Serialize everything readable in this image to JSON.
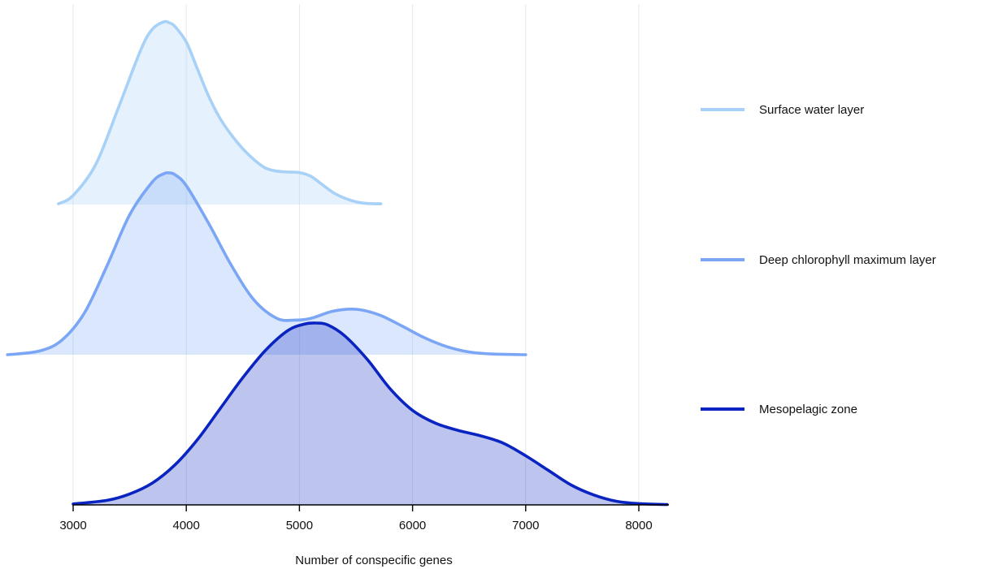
{
  "chart_data": {
    "type": "area",
    "chart_style": "ridgeline density",
    "title": "",
    "xlabel": "Number of conspecific genes",
    "ylabel": "",
    "xlim": [
      2400,
      8250
    ],
    "xticks": [
      3000,
      4000,
      5000,
      6000,
      7000,
      8000
    ],
    "grid": "vertical",
    "legend_position": "right",
    "series": [
      {
        "name": "Surface water layer",
        "color": "#a8d1f7",
        "fill_opacity": 0.3,
        "x": [
          2870,
          3000,
          3200,
          3400,
          3600,
          3700,
          3800,
          3850,
          3900,
          4000,
          4100,
          4200,
          4300,
          4400,
          4500,
          4600,
          4700,
          4800,
          4900,
          5000,
          5100,
          5200,
          5300,
          5400,
          5500,
          5600,
          5720
        ],
        "y": [
          0.004,
          0.05,
          0.22,
          0.53,
          0.85,
          0.96,
          1.0,
          0.995,
          0.975,
          0.89,
          0.74,
          0.59,
          0.47,
          0.38,
          0.305,
          0.245,
          0.2,
          0.183,
          0.178,
          0.175,
          0.155,
          0.11,
          0.065,
          0.035,
          0.015,
          0.006,
          0.004
        ]
      },
      {
        "name": "Deep chlorophyll maximum layer",
        "color": "#7aa6f5",
        "fill_opacity": 0.27,
        "x": [
          2420,
          2700,
          2900,
          3100,
          3300,
          3500,
          3700,
          3800,
          3850,
          3900,
          4000,
          4200,
          4400,
          4600,
          4800,
          4950,
          5100,
          5300,
          5500,
          5700,
          5900,
          6100,
          6300,
          6500,
          6700,
          7000
        ],
        "y": [
          0.0,
          0.02,
          0.08,
          0.23,
          0.49,
          0.77,
          0.95,
          0.995,
          1.0,
          0.99,
          0.93,
          0.72,
          0.49,
          0.3,
          0.2,
          0.19,
          0.2,
          0.24,
          0.25,
          0.22,
          0.16,
          0.095,
          0.045,
          0.015,
          0.004,
          0.0
        ]
      },
      {
        "name": "Mesopelagic zone",
        "color": "#0a24c2",
        "fill_opacity": 0.27,
        "x": [
          3000,
          3300,
          3500,
          3700,
          3900,
          4100,
          4300,
          4500,
          4700,
          4900,
          5050,
          5150,
          5250,
          5400,
          5600,
          5800,
          6000,
          6200,
          6400,
          6600,
          6800,
          7000,
          7200,
          7400,
          7600,
          7800,
          8000,
          8250
        ],
        "y": [
          0.005,
          0.025,
          0.06,
          0.12,
          0.22,
          0.36,
          0.53,
          0.7,
          0.85,
          0.96,
          0.995,
          1.0,
          0.99,
          0.93,
          0.8,
          0.64,
          0.52,
          0.45,
          0.41,
          0.38,
          0.34,
          0.27,
          0.19,
          0.11,
          0.055,
          0.02,
          0.007,
          0.002
        ]
      }
    ]
  }
}
